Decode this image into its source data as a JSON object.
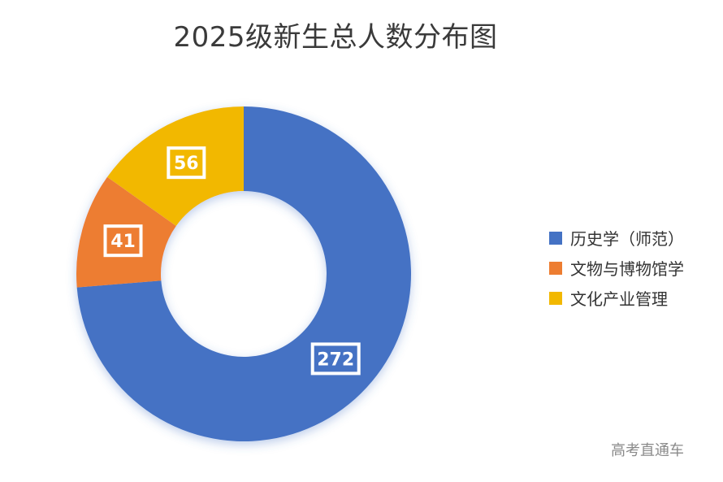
{
  "chart_data": {
    "type": "pie",
    "variant": "donut",
    "title": "2025级新生总人数分布图",
    "categories": [
      "历史学（师范）",
      "文物与博物馆学",
      "文化产业管理"
    ],
    "values": [
      272,
      41,
      56
    ],
    "colors": [
      "#4472C4",
      "#ED7D31",
      "#F2B800"
    ],
    "data_labels": [
      "272",
      "41",
      "56"
    ],
    "legend_position": "right",
    "start_angle_deg": 0,
    "direction": "clockwise"
  },
  "title": "2025级新生总人数分布图",
  "legend": {
    "items": [
      {
        "label": "历史学（师范）",
        "color": "#4472C4"
      },
      {
        "label": "文物与博物馆学",
        "color": "#ED7D31"
      },
      {
        "label": "文化产业管理",
        "color": "#F2B800"
      }
    ]
  },
  "watermark": "高考直通车"
}
